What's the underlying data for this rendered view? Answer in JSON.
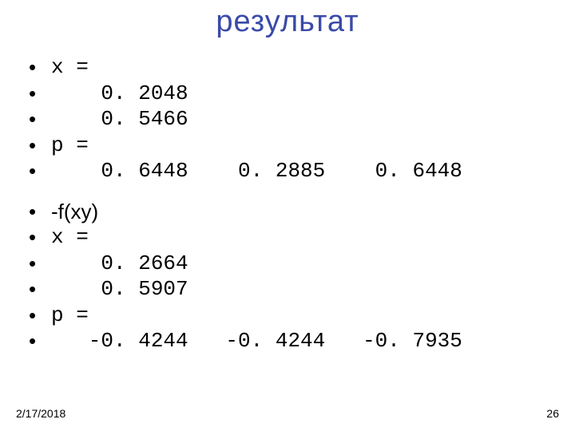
{
  "title": {
    "text": "результат",
    "color": "#3a4aa8",
    "font_size": 38
  },
  "block1": {
    "lines": [
      "x =",
      "    0. 2048",
      "    0. 5466",
      "p =",
      "    0. 6448    0. 2885    0. 6448"
    ]
  },
  "block2": {
    "fxy_label": "-f(xy)",
    "lines": [
      "x =",
      "    0. 2664",
      "    0. 5907",
      "p =",
      "   -0. 4244   -0. 4244   -0. 7935"
    ]
  },
  "footer": {
    "date": "2/17/2018",
    "page": "26"
  },
  "colors": {
    "background": "#ffffff",
    "text": "#000000",
    "title": "#3a4aa8"
  }
}
